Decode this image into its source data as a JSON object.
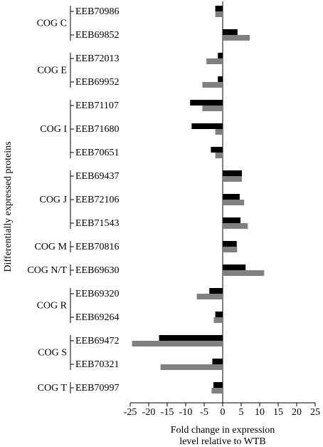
{
  "chart_data": {
    "type": "hbar",
    "ylabel": "Differentially expressed proteins",
    "xlabel": [
      "Fold change in expression",
      "level relative to WTB"
    ],
    "groups": [
      {
        "label": "COG C",
        "categories": [
          "EEB70986",
          "EEB69852"
        ]
      },
      {
        "label": "COG E",
        "categories": [
          "EEB72013",
          "EEB69952"
        ]
      },
      {
        "label": "COG I",
        "categories": [
          "EEB71107",
          "EEB71680",
          "EEB70651"
        ]
      },
      {
        "label": "COG J",
        "categories": [
          "EEB69437",
          "EEB72106",
          "EEB71543"
        ]
      },
      {
        "label": "COG M",
        "categories": [
          "EEB70816"
        ]
      },
      {
        "label": "COG N/T",
        "categories": [
          "EEB69630"
        ]
      },
      {
        "label": "COG R",
        "categories": [
          "EEB69320",
          "EEB69264"
        ]
      },
      {
        "label": "COG S",
        "categories": [
          "EEB69472",
          "EEB70321"
        ]
      },
      {
        "label": "COG T",
        "categories": [
          "EEB70997"
        ]
      }
    ],
    "series": [
      {
        "color": "#000000",
        "values": [
          -2,
          4,
          -1.3,
          -1.3,
          -8.8,
          -8.4,
          -3.2,
          5.2,
          4.6,
          4.8,
          3.8,
          6.2,
          -3.6,
          -2,
          -17.2,
          -2.8,
          -2.5
        ]
      },
      {
        "color": "#808080",
        "values": [
          -2,
          7.3,
          -4.4,
          -5.5,
          -5.5,
          -2,
          -2,
          5.2,
          5.8,
          6.8,
          3.9,
          11.2,
          -7,
          -2.4,
          -24.5,
          -16.8,
          -3
        ]
      }
    ],
    "xlim": [
      -25,
      25
    ],
    "xticks": [
      -25,
      -20,
      -15,
      -10,
      -5,
      0,
      5,
      10,
      15,
      20,
      25
    ]
  }
}
